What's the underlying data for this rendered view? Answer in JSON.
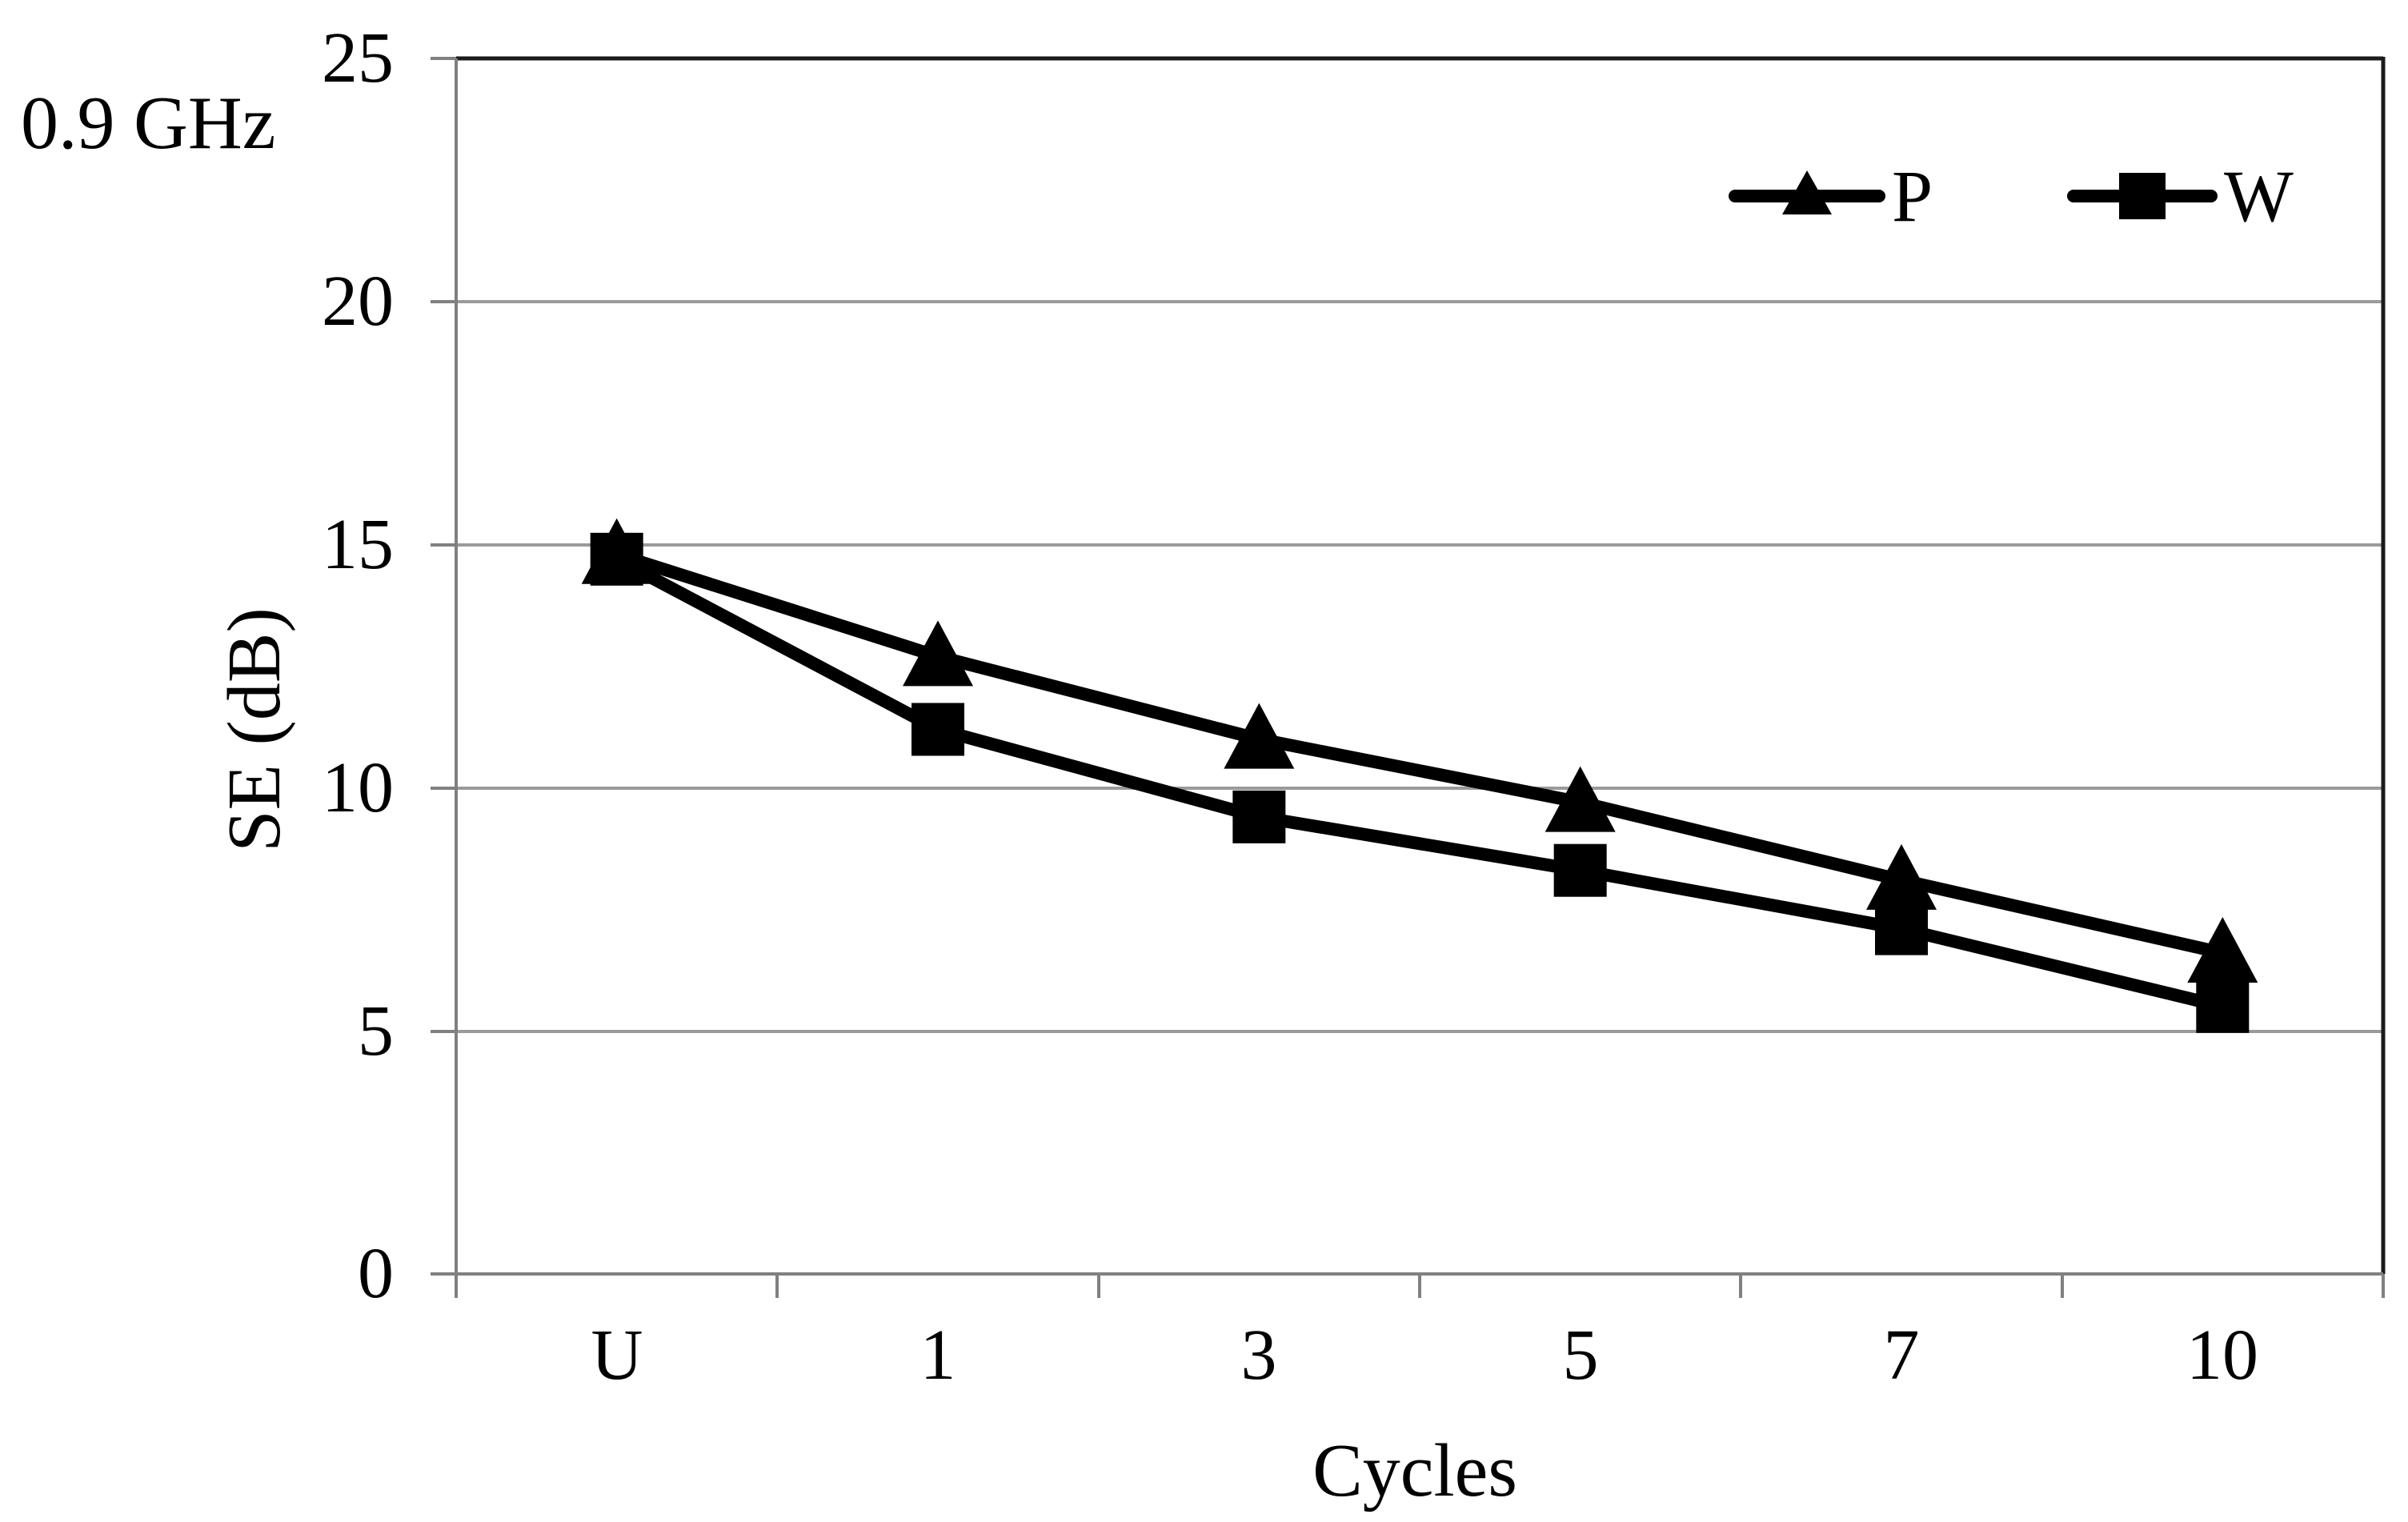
{
  "annotation": "0.9 GHz",
  "chart_data": {
    "type": "line",
    "title": "0.9 GHz",
    "xlabel": "Cycles",
    "ylabel": "SE (dB)",
    "categories": [
      "U",
      "1",
      "3",
      "5",
      "7",
      "10"
    ],
    "yticks": [
      "25",
      "20",
      "15",
      "10",
      "5",
      "0"
    ],
    "ylim": [
      0,
      25
    ],
    "ytick_step": 5,
    "grid": true,
    "legend_position": "top-right",
    "series": [
      {
        "name": "P",
        "marker": "triangle",
        "color": "#000000",
        "values": [
          14.8,
          12.7,
          11.0,
          9.7,
          8.1,
          6.6
        ]
      },
      {
        "name": "W",
        "marker": "square",
        "color": "#000000",
        "values": [
          14.7,
          11.2,
          9.4,
          8.3,
          7.1,
          5.5
        ]
      }
    ],
    "colors": {
      "gridline": "#9a9a9a",
      "axis": "#808080",
      "border": "#1a1a1a",
      "series": "#000000",
      "text": "#000000"
    }
  }
}
